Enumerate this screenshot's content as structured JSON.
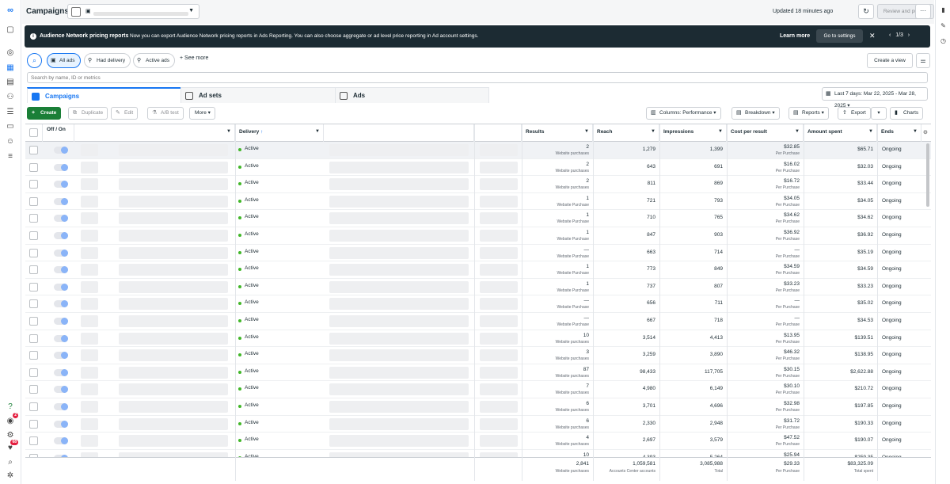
{
  "app": {
    "title": "Campaigns",
    "updated": "Updated 18 minutes ago"
  },
  "header": {
    "review_publish": "Review and publish",
    "more": "···"
  },
  "banner": {
    "title": "Audience Network pricing reports",
    "message": "Now you can export Audience Network pricing reports in Ads Reporting. You can also choose aggregate or ad level price reporting in Ad account settings.",
    "learn_more": "Learn more",
    "go_to_settings": "Go to settings",
    "pager": "1/3"
  },
  "filters": {
    "chips": [
      "All ads",
      "Had delivery",
      "Active ads"
    ],
    "see_more": "+ See more",
    "create_view": "Create a view",
    "search_placeholder": "Search by name, ID or metrics"
  },
  "tabs": [
    "Campaigns",
    "Ad sets",
    "Ads"
  ],
  "date_range": "Last 7 days: Mar 22, 2025 - Mar 28, 2025",
  "toolbar": {
    "create": "Create",
    "duplicate": "Duplicate",
    "edit": "Edit",
    "ab_test": "A/B test",
    "more": "More",
    "columns": "Columns: Performance",
    "breakdown": "Breakdown",
    "reports": "Reports",
    "export": "Export",
    "charts": "Charts"
  },
  "columns": {
    "off_on": "Off / On",
    "delivery": "Delivery",
    "delivery_sort": "↑",
    "results": "Results",
    "reach": "Reach",
    "impressions": "Impressions",
    "cost_per_result": "Cost per result",
    "amount_spent": "Amount spent",
    "ends": "Ends"
  },
  "rows": [
    {
      "delivery": "Active",
      "results": "2",
      "results_sub": "Website purchases",
      "reach": "1,279",
      "impressions": "1,399",
      "cpr": "$32.85",
      "cpr_sub": "Per Purchase",
      "spent": "$65.71",
      "ends": "Ongoing"
    },
    {
      "delivery": "Active",
      "results": "2",
      "results_sub": "Website purchases",
      "reach": "643",
      "impressions": "691",
      "cpr": "$16.02",
      "cpr_sub": "Per Purchase",
      "spent": "$32.03",
      "ends": "Ongoing"
    },
    {
      "delivery": "Active",
      "results": "2",
      "results_sub": "Website purchases",
      "reach": "811",
      "impressions": "869",
      "cpr": "$16.72",
      "cpr_sub": "Per Purchase",
      "spent": "$33.44",
      "ends": "Ongoing"
    },
    {
      "delivery": "Active",
      "results": "1",
      "results_sub": "Website Purchase",
      "reach": "721",
      "impressions": "793",
      "cpr": "$34.05",
      "cpr_sub": "Per Purchase",
      "spent": "$34.05",
      "ends": "Ongoing"
    },
    {
      "delivery": "Active",
      "results": "1",
      "results_sub": "Website Purchase",
      "reach": "710",
      "impressions": "765",
      "cpr": "$34.62",
      "cpr_sub": "Per Purchase",
      "spent": "$34.62",
      "ends": "Ongoing"
    },
    {
      "delivery": "Active",
      "results": "1",
      "results_sub": "Website Purchase",
      "reach": "847",
      "impressions": "903",
      "cpr": "$36.92",
      "cpr_sub": "Per Purchase",
      "spent": "$36.92",
      "ends": "Ongoing"
    },
    {
      "delivery": "Active",
      "results": "—",
      "results_sub": "Website Purchase",
      "reach": "663",
      "impressions": "714",
      "cpr": "—",
      "cpr_sub": "Per Purchase",
      "spent": "$35.19",
      "ends": "Ongoing"
    },
    {
      "delivery": "Active",
      "results": "1",
      "results_sub": "Website Purchase",
      "reach": "773",
      "impressions": "849",
      "cpr": "$34.59",
      "cpr_sub": "Per Purchase",
      "spent": "$34.59",
      "ends": "Ongoing"
    },
    {
      "delivery": "Active",
      "results": "1",
      "results_sub": "Website Purchase",
      "reach": "737",
      "impressions": "807",
      "cpr": "$33.23",
      "cpr_sub": "Per Purchase",
      "spent": "$33.23",
      "ends": "Ongoing"
    },
    {
      "delivery": "Active",
      "results": "—",
      "results_sub": "Website Purchase",
      "reach": "656",
      "impressions": "711",
      "cpr": "—",
      "cpr_sub": "Per Purchase",
      "spent": "$35.02",
      "ends": "Ongoing"
    },
    {
      "delivery": "Active",
      "results": "—",
      "results_sub": "Website Purchase",
      "reach": "667",
      "impressions": "718",
      "cpr": "—",
      "cpr_sub": "Per Purchase",
      "spent": "$34.53",
      "ends": "Ongoing"
    },
    {
      "delivery": "Active",
      "results": "10",
      "results_sub": "Website purchases",
      "reach": "3,514",
      "impressions": "4,413",
      "cpr": "$13.95",
      "cpr_sub": "Per Purchase",
      "spent": "$139.51",
      "ends": "Ongoing"
    },
    {
      "delivery": "Active",
      "results": "3",
      "results_sub": "Website purchases",
      "reach": "3,259",
      "impressions": "3,890",
      "cpr": "$46.32",
      "cpr_sub": "Per Purchase",
      "spent": "$138.95",
      "ends": "Ongoing"
    },
    {
      "delivery": "Active",
      "results": "87",
      "results_sub": "Website purchases",
      "reach": "98,433",
      "impressions": "117,705",
      "cpr": "$30.15",
      "cpr_sub": "Per Purchase",
      "spent": "$2,622.88",
      "ends": "Ongoing"
    },
    {
      "delivery": "Active",
      "results": "7",
      "results_sub": "Website purchases",
      "reach": "4,980",
      "impressions": "6,149",
      "cpr": "$30.10",
      "cpr_sub": "Per Purchase",
      "spent": "$210.72",
      "ends": "Ongoing"
    },
    {
      "delivery": "Active",
      "results": "6",
      "results_sub": "Website purchases",
      "reach": "3,701",
      "impressions": "4,696",
      "cpr": "$32.98",
      "cpr_sub": "Per Purchase",
      "spent": "$197.85",
      "ends": "Ongoing"
    },
    {
      "delivery": "Active",
      "results": "6",
      "results_sub": "Website purchases",
      "reach": "2,330",
      "impressions": "2,948",
      "cpr": "$31.72",
      "cpr_sub": "Per Purchase",
      "spent": "$190.33",
      "ends": "Ongoing"
    },
    {
      "delivery": "Active",
      "results": "4",
      "results_sub": "Website purchases",
      "reach": "2,697",
      "impressions": "3,579",
      "cpr": "$47.52",
      "cpr_sub": "Per Purchase",
      "spent": "$190.07",
      "ends": "Ongoing"
    },
    {
      "delivery": "Active",
      "results": "10",
      "results_sub": "Website purchases",
      "reach": "4,393",
      "impressions": "5,264",
      "cpr": "$25.94",
      "cpr_sub": "Per Purchase",
      "spent": "$259.35",
      "ends": "Ongoing"
    }
  ],
  "totals": {
    "results": "2,841",
    "results_sub": "Website purchases",
    "reach": "1,059,581",
    "reach_sub": "Accounts Center accounts",
    "impressions": "3,085,988",
    "impressions_sub": "Total",
    "cpr": "$29.33",
    "cpr_sub": "Per Purchase",
    "spent": "$83,325.09",
    "spent_sub": "Total spent"
  },
  "nav": {
    "left_badge_1": "2",
    "left_badge_2": "68"
  },
  "colors": {
    "accent": "#1877f2",
    "create": "#1a7f37",
    "banner": "#1c2b33",
    "active_dot": "#42b72a"
  }
}
